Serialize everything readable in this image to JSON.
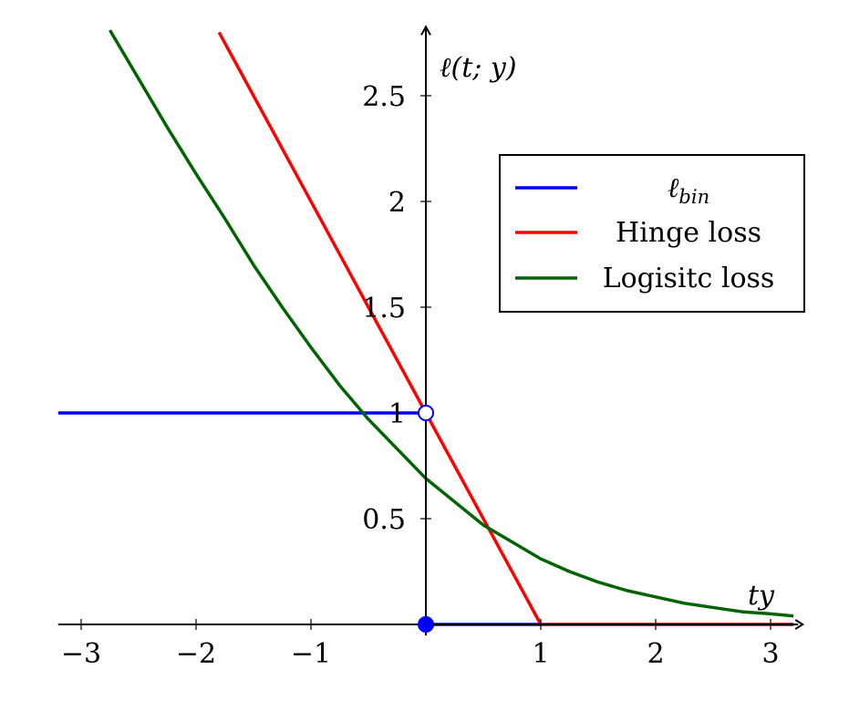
{
  "chart_data": {
    "type": "line",
    "xlabel": "ty",
    "ylabel": "ℓ(t; y)",
    "xlim": [
      -3.2,
      3.2
    ],
    "ylim": [
      0,
      2.8
    ],
    "x_ticks": [
      -3,
      -2,
      -1,
      1,
      2,
      3
    ],
    "x_tick_labels": [
      "−3",
      "−2",
      "−1",
      "1",
      "2",
      "3"
    ],
    "y_ticks": [
      0.5,
      1,
      1.5,
      2,
      2.5
    ],
    "y_tick_labels": [
      "0.5",
      "1",
      "1.5",
      "2",
      "2.5"
    ],
    "grid": false,
    "legend_position": "top-right",
    "series": [
      {
        "name": "ℓbin",
        "name_main": "ℓ",
        "name_sub": "bin",
        "color": "#0000ff",
        "segments": [
          {
            "x": [
              -3.2,
              0
            ],
            "y": [
              1,
              1
            ]
          },
          {
            "x": [
              0,
              3.2
            ],
            "y": [
              0,
              0
            ]
          }
        ],
        "markers": [
          {
            "x": 0,
            "y": 1,
            "style": "open"
          },
          {
            "x": 0,
            "y": 0,
            "style": "filled"
          }
        ]
      },
      {
        "name": "Hinge loss",
        "color": "#ff0000",
        "x": [
          -1.8,
          1,
          3.2
        ],
        "y": [
          2.8,
          0,
          0
        ]
      },
      {
        "name": "Logisitc loss",
        "color": "#006400",
        "x": [
          -2.75,
          -2.5,
          -2.25,
          -2.0,
          -1.75,
          -1.5,
          -1.25,
          -1.0,
          -0.75,
          -0.5,
          -0.25,
          0.0,
          0.25,
          0.5,
          0.75,
          1.0,
          1.25,
          1.5,
          1.75,
          2.0,
          2.25,
          2.5,
          2.75,
          3.0,
          3.2
        ],
        "y": [
          2.81,
          2.58,
          2.35,
          2.13,
          1.92,
          1.7,
          1.5,
          1.31,
          1.13,
          0.97,
          0.83,
          0.69,
          0.58,
          0.47,
          0.39,
          0.31,
          0.25,
          0.2,
          0.16,
          0.13,
          0.1,
          0.08,
          0.06,
          0.05,
          0.04
        ]
      }
    ]
  }
}
